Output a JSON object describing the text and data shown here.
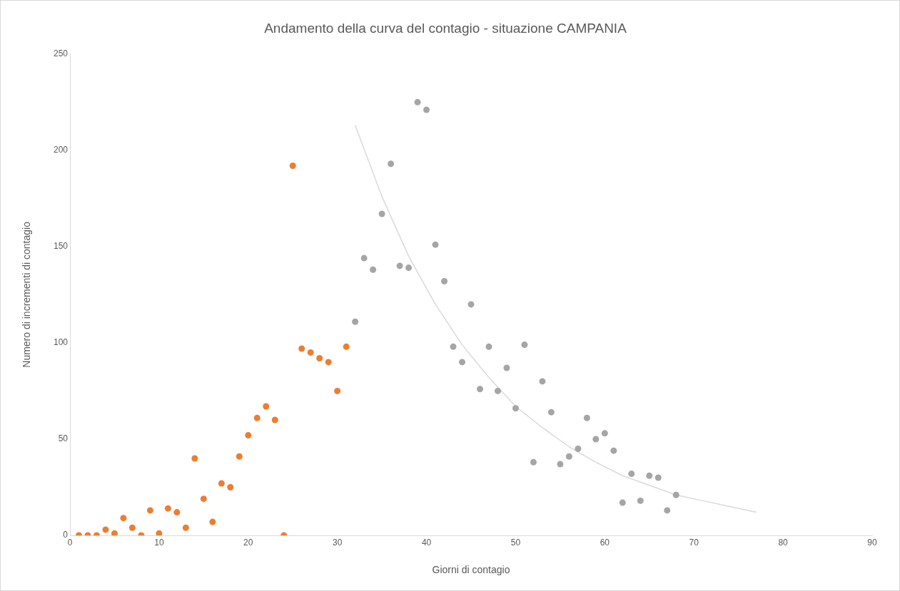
{
  "chart_data": {
    "type": "scatter",
    "title": "Andamento della curva del contagio - situazione CAMPANIA",
    "xlabel": "Giorni di contagio",
    "ylabel": "Numero di incrementi di contagio",
    "xlim": [
      0,
      90
    ],
    "xticks": [
      0,
      10,
      20,
      30,
      40,
      50,
      60,
      70,
      80,
      90
    ],
    "ylim": [
      0,
      250
    ],
    "yticks": [
      0,
      50,
      100,
      150,
      200,
      250
    ],
    "grid": false,
    "legend": false,
    "marker": "circle",
    "series": [
      {
        "color": "#ed7d31",
        "x": [
          1,
          2,
          3,
          4,
          5,
          6,
          7,
          8,
          9,
          10,
          11,
          12,
          13,
          14,
          15,
          16,
          17,
          18,
          19,
          20,
          21,
          22,
          23,
          24,
          25,
          26,
          27,
          28,
          29,
          30,
          31
        ],
        "values": [
          0,
          0,
          0,
          3,
          1,
          9,
          4,
          0,
          13,
          1,
          14,
          12,
          4,
          40,
          19,
          7,
          27,
          25,
          41,
          52,
          61,
          67,
          60,
          0,
          192,
          97,
          95,
          92,
          90,
          75,
          98
        ]
      },
      {
        "color": "#a5a5a5",
        "x": [
          32,
          33,
          34,
          35,
          36,
          37,
          38,
          39,
          40,
          41,
          42,
          43,
          44,
          45,
          46,
          47,
          48,
          49,
          50,
          51,
          52,
          53,
          54,
          55,
          56,
          57,
          58,
          59,
          60,
          61,
          62,
          63,
          64,
          65,
          66,
          67,
          68
        ],
        "values": [
          111,
          144,
          138,
          167,
          193,
          140,
          139,
          225,
          221,
          151,
          132,
          98,
          90,
          120,
          76,
          98,
          75,
          87,
          66,
          99,
          38,
          80,
          64,
          37,
          41,
          45,
          61,
          50,
          53,
          44,
          17,
          32,
          18,
          31,
          30,
          13,
          21
        ]
      },
      {
        "type": "line",
        "marker": "none",
        "color": "#d9d9d9",
        "x": [
          32,
          35,
          38,
          41,
          44,
          47,
          50,
          53,
          56,
          59,
          62,
          65,
          68,
          71,
          74,
          77
        ],
        "values": [
          213,
          176,
          145,
          120,
          99,
          82,
          67,
          56,
          46,
          38,
          31,
          26,
          21,
          18,
          15,
          12
        ]
      }
    ]
  }
}
